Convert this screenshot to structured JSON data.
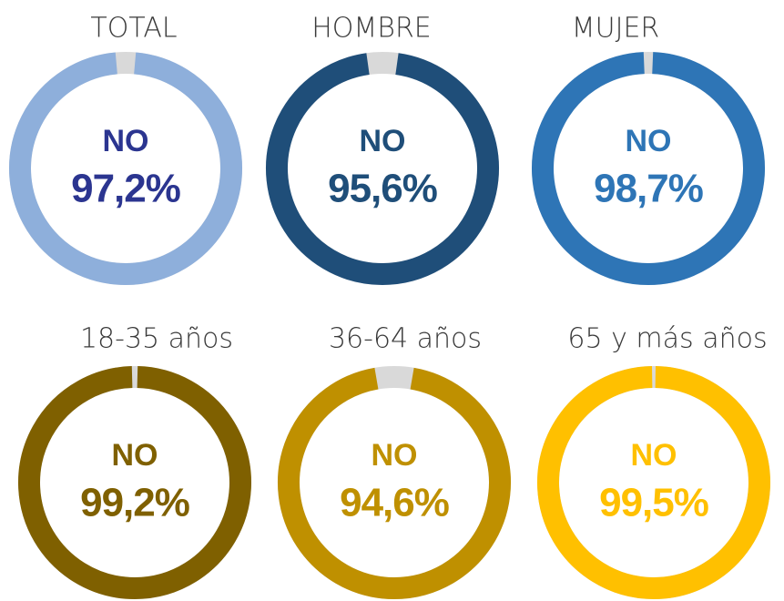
{
  "chart_data": [
    {
      "type": "donut",
      "title": "TOTAL",
      "center_label": "NO",
      "values": [
        97.2
      ],
      "value_labels": [
        "97,2%"
      ],
      "color": "#8eafdb",
      "label_color": "#2b3590"
    },
    {
      "type": "donut",
      "title": "HOMBRE",
      "center_label": "NO",
      "values": [
        95.6
      ],
      "value_labels": [
        "95,6%"
      ],
      "color": "#1f4e79",
      "label_color": "#1f4e79"
    },
    {
      "type": "donut",
      "title": "MUJER",
      "center_label": "NO",
      "values": [
        98.7
      ],
      "value_labels": [
        "98,7%"
      ],
      "color": "#2e75b6",
      "label_color": "#2e75b6"
    },
    {
      "type": "donut",
      "title": "18-35 años",
      "center_label": "NO",
      "values": [
        99.2
      ],
      "value_labels": [
        "99,2%"
      ],
      "color": "#7f6000",
      "label_color": "#7f6000"
    },
    {
      "type": "donut",
      "title": "36-64 años",
      "center_label": "NO",
      "values": [
        94.6
      ],
      "value_labels": [
        "94,6%"
      ],
      "color": "#bf9000",
      "label_color": "#bf9000"
    },
    {
      "type": "donut",
      "title": "65 y más años",
      "center_label": "NO",
      "values": [
        99.5
      ],
      "value_labels": [
        "99,5%"
      ],
      "color": "#ffc000",
      "label_color": "#ffc000"
    }
  ]
}
